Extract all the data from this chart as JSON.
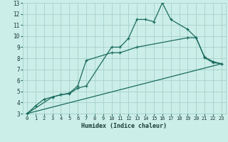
{
  "xlabel": "Humidex (Indice chaleur)",
  "bg_color": "#cceee8",
  "grid_color": "#aad4ce",
  "line_color": "#1a6b5e",
  "xlim": [
    -0.5,
    23.5
  ],
  "ylim": [
    3,
    13
  ],
  "xticks": [
    0,
    1,
    2,
    3,
    4,
    5,
    6,
    7,
    8,
    9,
    10,
    11,
    12,
    13,
    14,
    15,
    16,
    17,
    18,
    19,
    20,
    21,
    22,
    23
  ],
  "yticks": [
    3,
    4,
    5,
    6,
    7,
    8,
    9,
    10,
    11,
    12,
    13
  ],
  "line1_x": [
    0,
    1,
    2,
    3,
    4,
    5,
    6,
    7,
    10,
    11,
    12,
    13,
    14,
    15,
    16,
    17,
    19,
    20,
    21,
    22,
    23
  ],
  "line1_y": [
    3,
    3.7,
    4.3,
    4.5,
    4.7,
    4.8,
    5.3,
    5.5,
    9.0,
    9.0,
    9.8,
    11.5,
    11.5,
    11.3,
    13.0,
    11.5,
    10.6,
    9.85,
    8.05,
    7.6,
    7.5
  ],
  "line2_x": [
    0,
    3,
    4,
    5,
    6,
    7,
    10,
    11,
    13,
    19,
    20,
    21,
    22,
    23
  ],
  "line2_y": [
    3,
    4.5,
    4.7,
    4.85,
    5.5,
    7.8,
    8.5,
    8.5,
    9.0,
    9.85,
    9.85,
    8.1,
    7.7,
    7.5
  ],
  "line3_x": [
    0,
    23
  ],
  "line3_y": [
    3,
    7.5
  ]
}
